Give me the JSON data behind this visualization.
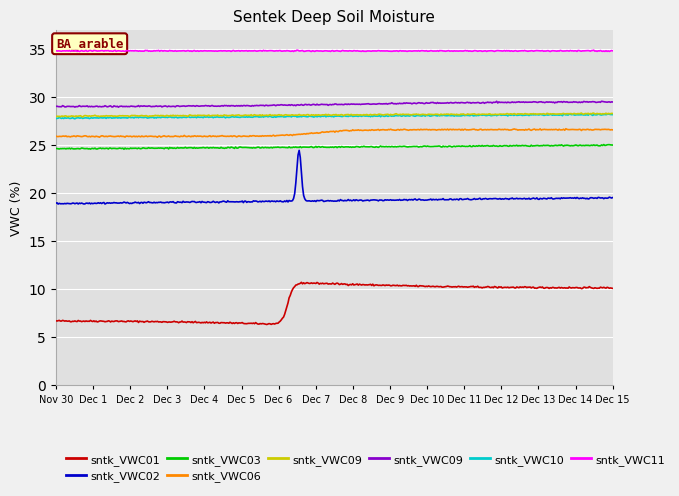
{
  "title": "Sentek Deep Soil Moisture",
  "ylabel": "VWC (%)",
  "ylim": [
    0,
    37
  ],
  "yticks": [
    0,
    5,
    10,
    15,
    20,
    25,
    30,
    35
  ],
  "annotation_text": "BA_arable",
  "figure_facecolor": "#f0f0f0",
  "axes_facecolor": "#e0e0e0",
  "grid_color": "#ffffff",
  "tick_labels": [
    "Nov 30",
    "Dec 1",
    "Dec 2",
    "Dec 3",
    "Dec 4",
    "Dec 5",
    "Dec 6",
    "Dec 7",
    "Dec 8",
    "Dec 9",
    "Dec 10",
    "Dec 11",
    "Dec 12",
    "Dec 13",
    "Dec 14",
    "Dec 15"
  ],
  "colors": {
    "vwc01": "#cc0000",
    "vwc02": "#0000cc",
    "vwc03": "#00cc00",
    "vwc06": "#ff8800",
    "vwc09y": "#cccc00",
    "vwc09p": "#8800cc",
    "vwc10": "#00cccc",
    "vwc11": "#ff00ff"
  },
  "legend_labels": [
    "sntk_VWC01",
    "sntk_VWC02",
    "sntk_VWC03",
    "sntk_VWC06",
    "sntk_VWC09",
    "sntk_VWC09",
    "sntk_VWC10",
    "sntk_VWC11"
  ]
}
